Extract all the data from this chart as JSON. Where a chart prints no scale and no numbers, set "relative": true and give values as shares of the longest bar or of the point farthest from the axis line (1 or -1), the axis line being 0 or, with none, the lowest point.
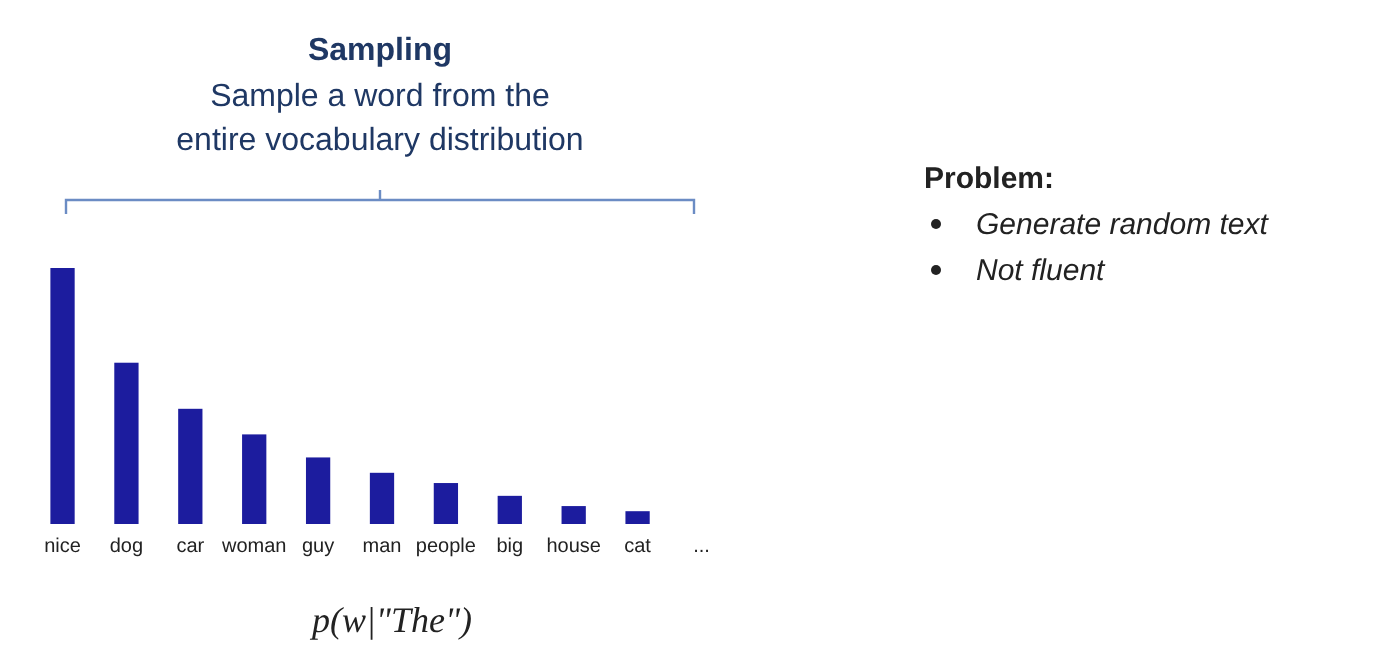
{
  "chart_data": {
    "type": "bar",
    "title": "Sampling",
    "subtitle": "Sample a word from the entire vocabulary distribution",
    "xlabel": "p(w|\"The\")",
    "categories": [
      "nice",
      "dog",
      "car",
      "woman",
      "guy",
      "man",
      "people",
      "big",
      "house",
      "cat",
      "..."
    ],
    "values": [
      1,
      0.63,
      0.45,
      0.35,
      0.26,
      0.2,
      0.16,
      0.11,
      0.07,
      0.05,
      null
    ],
    "color": "#1c1c9e",
    "relative": true,
    "annotations": [
      "Problem:",
      "Generate random text",
      "Not fluent"
    ]
  }
}
